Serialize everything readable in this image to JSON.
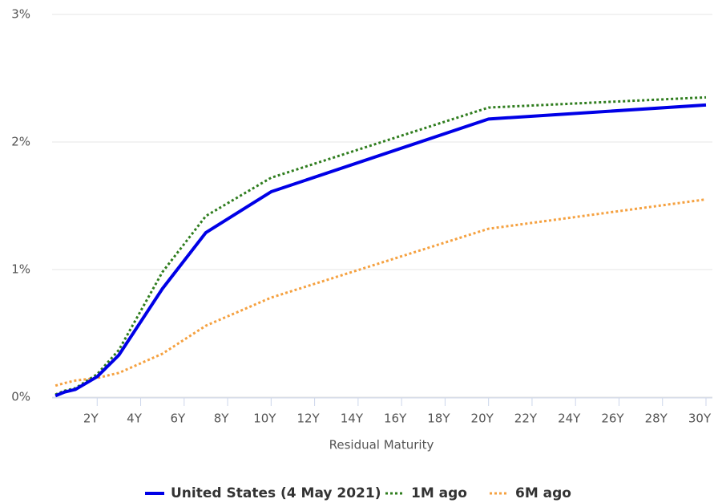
{
  "chart_data": {
    "type": "line",
    "x_label": "Residual Maturity",
    "x": [
      0.08,
      0.5,
      1,
      2,
      3,
      5,
      7,
      10,
      20,
      30
    ],
    "series": [
      {
        "name": "United States (4 May 2021)",
        "color": "#0000e6",
        "style": "solid",
        "values": [
          0.01,
          0.04,
          0.06,
          0.16,
          0.33,
          0.85,
          1.29,
          1.61,
          2.18,
          2.29
        ]
      },
      {
        "name": "1M ago",
        "color": "#2f7d1e",
        "style": "dotted",
        "values": [
          0.02,
          0.05,
          0.07,
          0.18,
          0.37,
          0.98,
          1.42,
          1.72,
          2.27,
          2.35
        ]
      },
      {
        "name": "6M ago",
        "color": "#f5a140",
        "style": "dotted",
        "values": [
          0.09,
          0.11,
          0.13,
          0.15,
          0.19,
          0.34,
          0.56,
          0.78,
          1.32,
          1.55
        ]
      }
    ],
    "xlim": [
      0,
      30
    ],
    "xticks": [
      {
        "value": 2,
        "label": "2Y"
      },
      {
        "value": 4,
        "label": "4Y"
      },
      {
        "value": 6,
        "label": "6Y"
      },
      {
        "value": 8,
        "label": "8Y"
      },
      {
        "value": 10,
        "label": "10Y"
      },
      {
        "value": 12,
        "label": "12Y"
      },
      {
        "value": 14,
        "label": "14Y"
      },
      {
        "value": 16,
        "label": "16Y"
      },
      {
        "value": 18,
        "label": "18Y"
      },
      {
        "value": 20,
        "label": "20Y"
      },
      {
        "value": 22,
        "label": "22Y"
      },
      {
        "value": 24,
        "label": "24Y"
      },
      {
        "value": 26,
        "label": "26Y"
      },
      {
        "value": 28,
        "label": "28Y"
      },
      {
        "value": 30,
        "label": "30Y"
      }
    ],
    "ylim": [
      0,
      3
    ],
    "yticks": [
      {
        "value": 0,
        "label": "0%"
      },
      {
        "value": 1,
        "label": "1%"
      },
      {
        "value": 2,
        "label": "2%"
      },
      {
        "value": 3,
        "label": "3%"
      }
    ],
    "grid": true,
    "legend": "bottom"
  }
}
